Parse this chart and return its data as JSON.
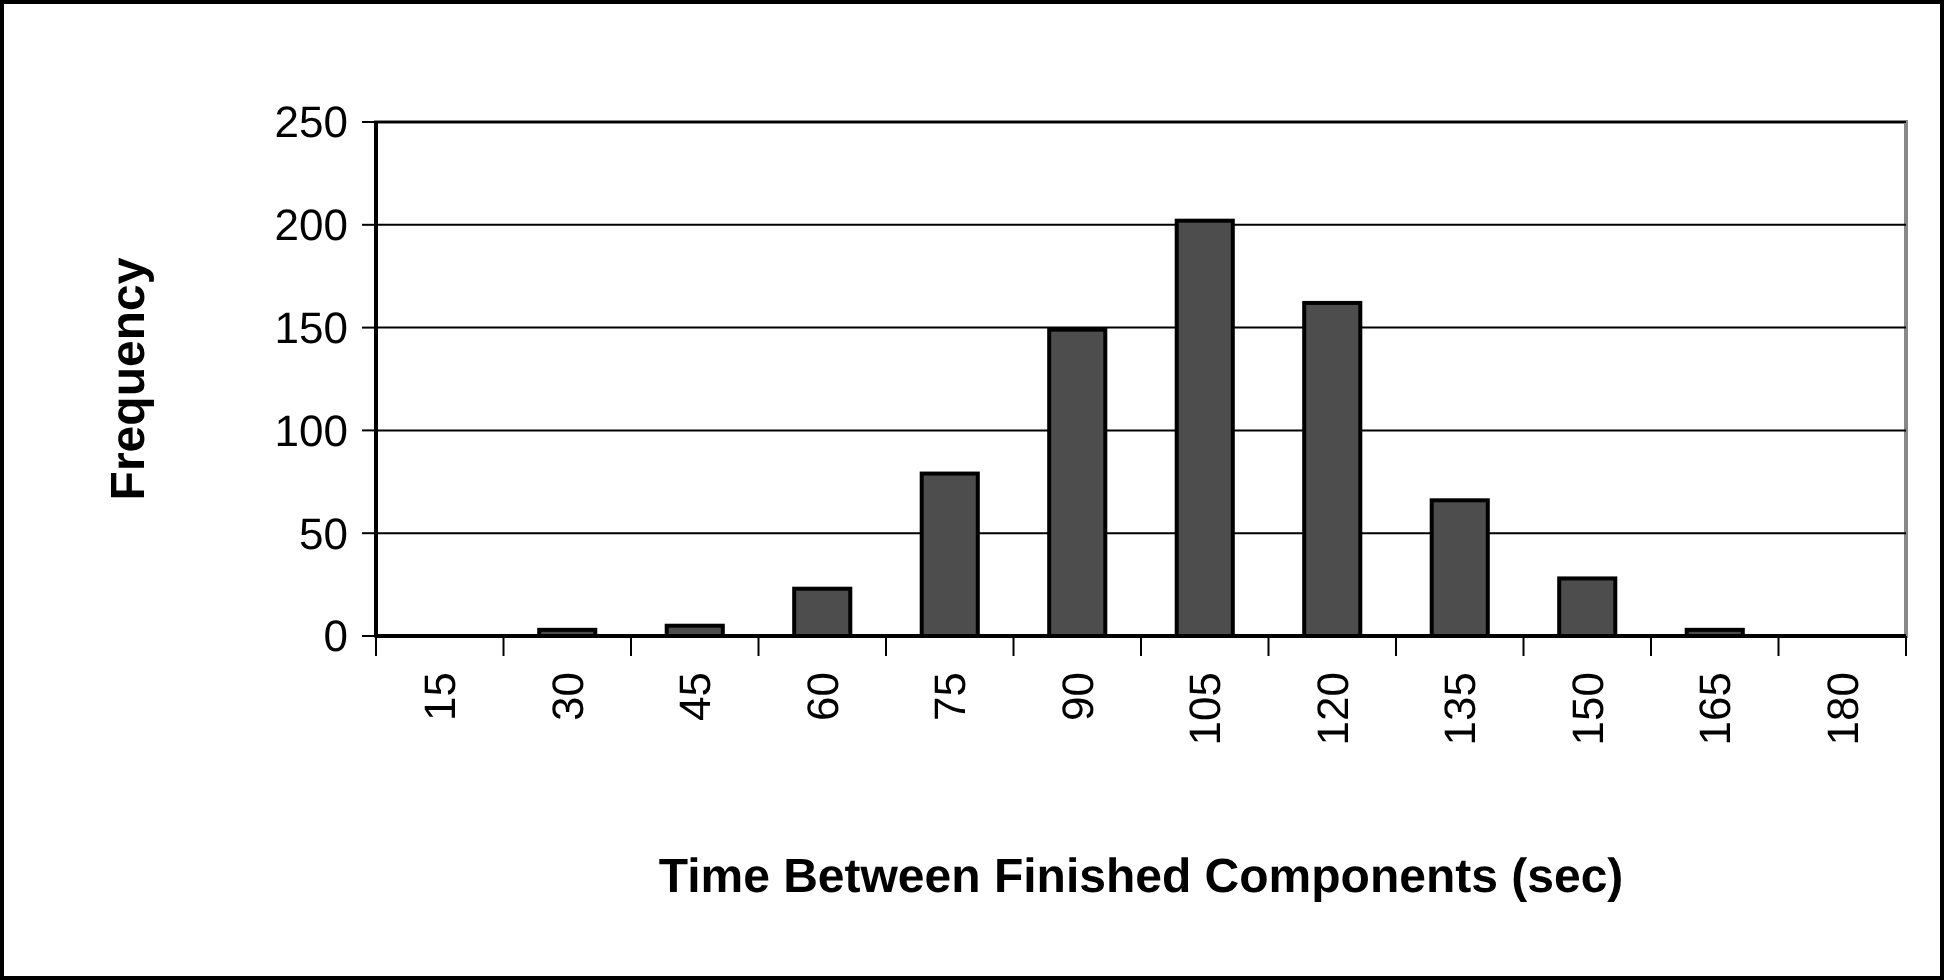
{
  "chart_data": {
    "type": "bar",
    "xlabel": "Time Between Finished Components (sec)",
    "ylabel": "Frequency",
    "categories": [
      "15",
      "30",
      "45",
      "60",
      "75",
      "90",
      "105",
      "120",
      "135",
      "150",
      "165",
      "180"
    ],
    "values": [
      0,
      3,
      5,
      23,
      79,
      149,
      202,
      162,
      66,
      28,
      3,
      0
    ],
    "color": "#4d4d4d",
    "ylim": [
      0,
      250
    ],
    "yticks": [
      0,
      50,
      100,
      150,
      200,
      250
    ],
    "grid": "y"
  }
}
